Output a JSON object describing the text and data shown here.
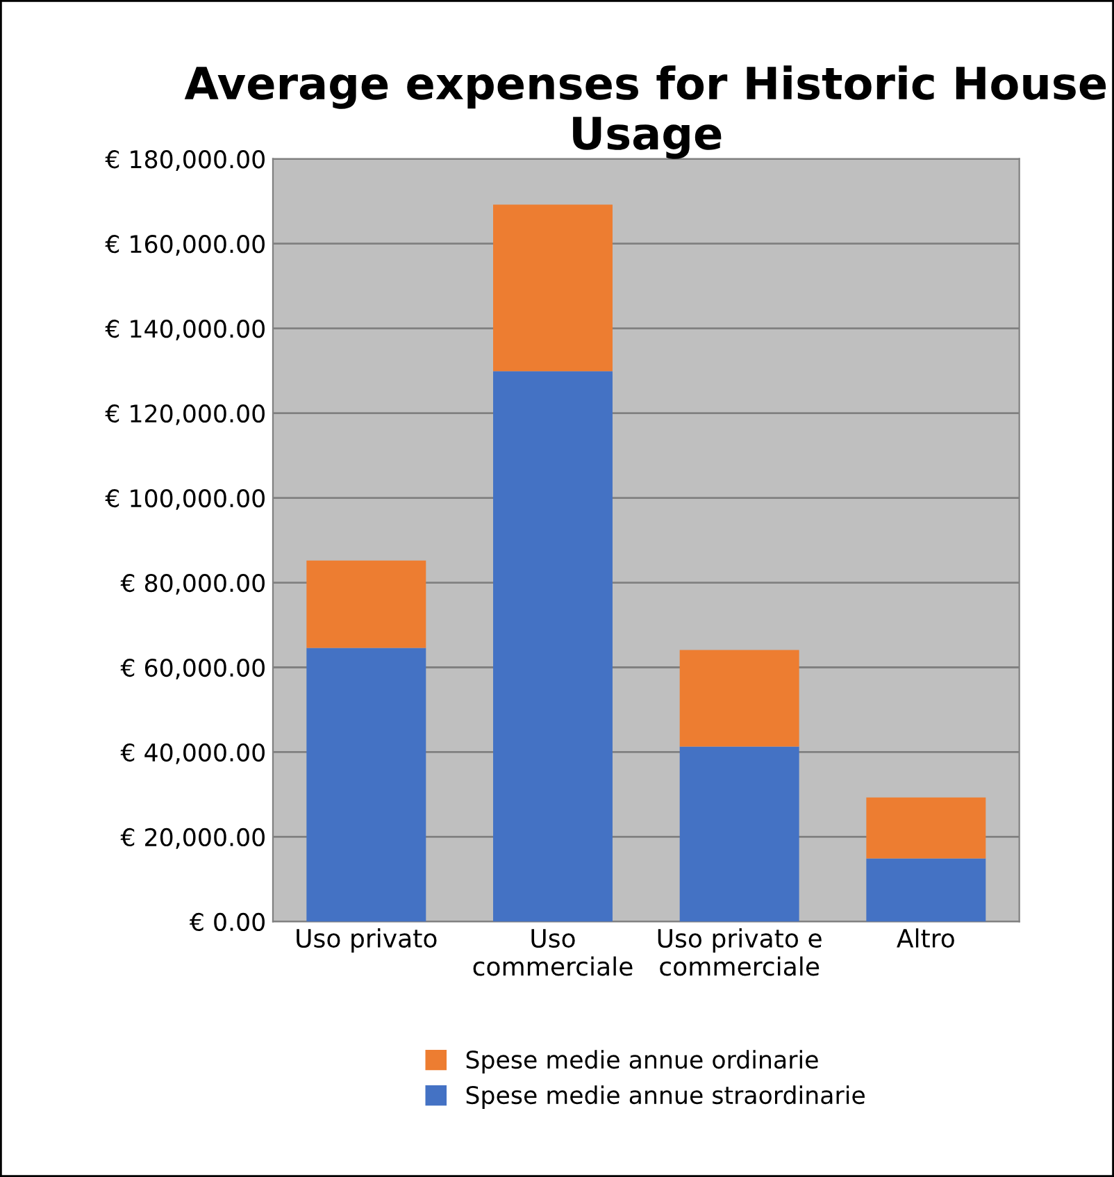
{
  "chart_data": {
    "type": "bar",
    "title": "Average expenses for Historic House Usage",
    "categories": [
      "Uso privato",
      "Uso\ncommerciale",
      "Uso privato e\ncommerciale",
      "Altro"
    ],
    "stacked": true,
    "series": [
      {
        "name": "Spese medie annue straordinarie",
        "color": "#4472c4",
        "values": [
          64600,
          129900,
          41300,
          14900
        ]
      },
      {
        "name": "Spese medie annue ordinarie",
        "color": "#ed7d31",
        "values": [
          20600,
          39300,
          22800,
          14400
        ]
      }
    ],
    "ylim": [
      0,
      180000
    ],
    "yticks": [
      {
        "value": 0,
        "label": "€ 0.00"
      },
      {
        "value": 20000,
        "label": "€ 20,000.00"
      },
      {
        "value": 40000,
        "label": "€ 40,000.00"
      },
      {
        "value": 60000,
        "label": "€ 60,000.00"
      },
      {
        "value": 80000,
        "label": "€ 80,000.00"
      },
      {
        "value": 100000,
        "label": "€ 100,000.00"
      },
      {
        "value": 120000,
        "label": "€ 120,000.00"
      },
      {
        "value": 140000,
        "label": "€ 140,000.00"
      },
      {
        "value": 160000,
        "label": "€ 160,000.00"
      },
      {
        "value": 180000,
        "label": "€ 180,000.00"
      }
    ],
    "grid": "y",
    "legend": "bottom"
  }
}
